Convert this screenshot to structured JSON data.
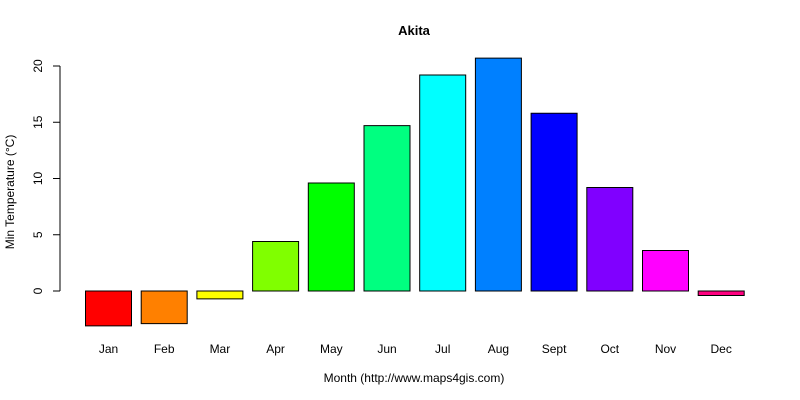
{
  "chart_data": {
    "type": "bar",
    "title": "Akita",
    "xlabel": "Month (http://www.maps4gis.com)",
    "ylabel": "Min Temperature (°C)",
    "categories": [
      "Jan",
      "Feb",
      "Mar",
      "Apr",
      "May",
      "Jun",
      "Jul",
      "Aug",
      "Sept",
      "Oct",
      "Nov",
      "Dec"
    ],
    "values": [
      -3.1,
      -2.9,
      -0.7,
      4.4,
      9.6,
      14.7,
      19.2,
      20.7,
      15.8,
      9.2,
      3.6,
      -0.4
    ],
    "colors": [
      "#ff0000",
      "#ff8000",
      "#ffff00",
      "#80ff00",
      "#00ff00",
      "#00ff80",
      "#00ffff",
      "#0080ff",
      "#0000ff",
      "#8000ff",
      "#ff00ff",
      "#ff0080"
    ],
    "yticks": [
      0,
      5,
      10,
      15,
      20
    ],
    "ylim": [
      -4,
      22
    ],
    "grid": false,
    "legend": "none"
  }
}
